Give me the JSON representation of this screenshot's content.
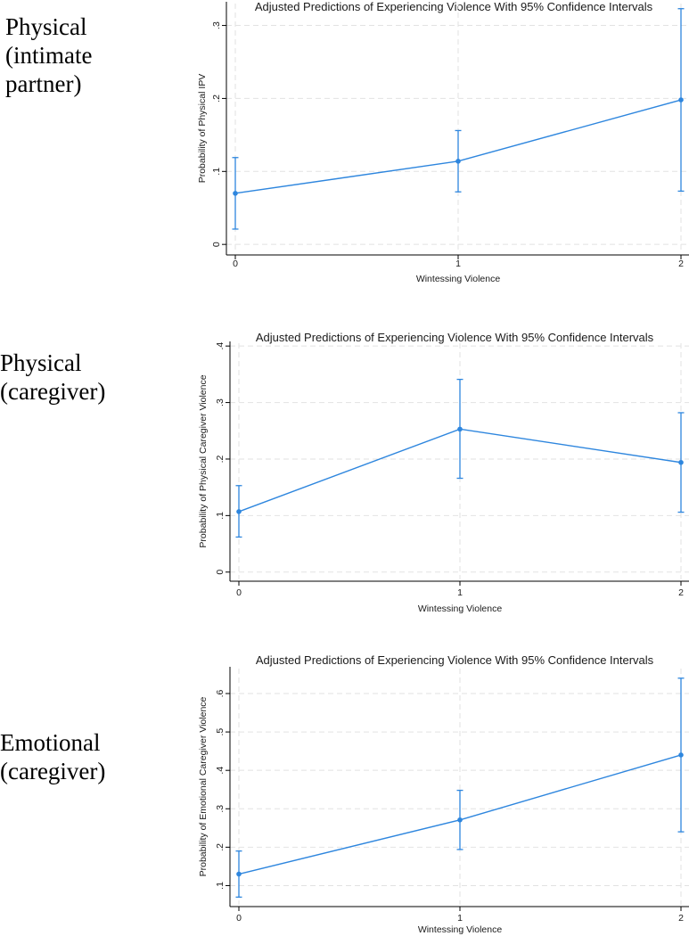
{
  "labels": [
    {
      "lines": [
        "Physical",
        "(intimate",
        "partner)"
      ]
    },
    {
      "lines": [
        "Physical",
        "(caregiver)"
      ]
    },
    {
      "lines": [
        "Emotional",
        "(caregiver)"
      ]
    }
  ],
  "colors": {
    "series": "#2e86de",
    "grid": "#e2e2e2",
    "axis": "#000000"
  },
  "chart_data": [
    {
      "type": "line",
      "title": "Adjusted Predictions of Experiencing Violence With 95% Confidence Intervals",
      "xlabel": "Wintessing Violence",
      "ylabel": "Probability of Physical IPV",
      "x": [
        0,
        1,
        2
      ],
      "xticks": [
        "0",
        "1",
        "2"
      ],
      "y": [
        0.07,
        0.114,
        0.198
      ],
      "ci_low": [
        0.021,
        0.072,
        0.073
      ],
      "ci_high": [
        0.119,
        0.156,
        0.323
      ],
      "yticks": [
        0,
        0.1,
        0.2,
        0.3
      ],
      "ytick_labels": [
        "0",
        ".1",
        ".2",
        ".3"
      ],
      "ylim": [
        -0.012,
        0.33
      ],
      "grid": true
    },
    {
      "type": "line",
      "title": "Adjusted Predictions of Experiencing Violence With 95% Confidence Intervals",
      "xlabel": "Wintessing Violence",
      "ylabel": "Probability of Physical Caregiver Violence",
      "x": [
        0,
        1,
        2
      ],
      "xticks": [
        "0",
        "1",
        "2"
      ],
      "y": [
        0.107,
        0.253,
        0.194
      ],
      "ci_low": [
        0.062,
        0.166,
        0.106
      ],
      "ci_high": [
        0.153,
        0.341,
        0.282
      ],
      "yticks": [
        0,
        0.1,
        0.2,
        0.3,
        0.4
      ],
      "ytick_labels": [
        "0",
        ".1",
        ".2",
        ".3",
        ".4"
      ],
      "ylim": [
        -0.013,
        0.405
      ],
      "grid": true
    },
    {
      "type": "line",
      "title": "Adjusted Predictions of Experiencing Violence With 95% Confidence Intervals",
      "xlabel": "Wintessing Violence",
      "ylabel": "Probability of Emotional Caregiver Violence",
      "x": [
        0,
        1,
        2
      ],
      "xticks": [
        "0",
        "1",
        "2"
      ],
      "y": [
        0.13,
        0.271,
        0.44
      ],
      "ci_low": [
        0.07,
        0.194,
        0.24
      ],
      "ci_high": [
        0.19,
        0.348,
        0.64
      ],
      "yticks": [
        0.1,
        0.2,
        0.3,
        0.4,
        0.5,
        0.6
      ],
      "ytick_labels": [
        ".1",
        ".2",
        ".3",
        ".4",
        ".5",
        ".6"
      ],
      "ylim": [
        0.05,
        0.665
      ],
      "grid": true
    }
  ]
}
